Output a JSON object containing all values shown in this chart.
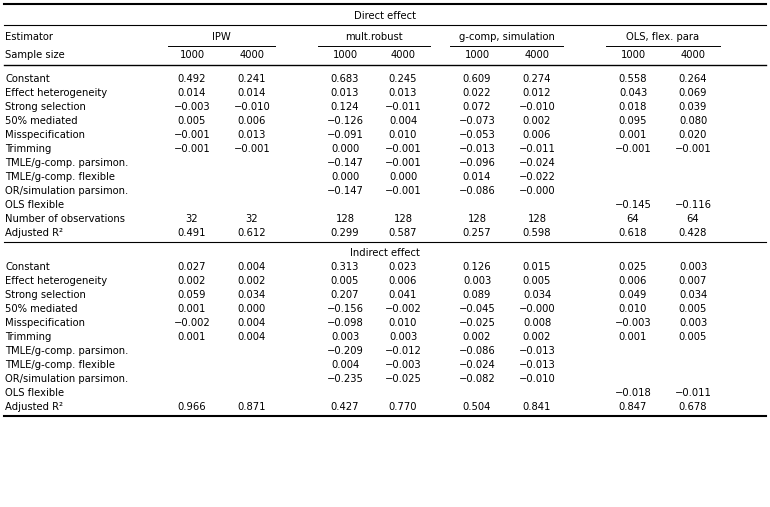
{
  "title_main": "Direct effect",
  "title_indirect": "Indirect effect",
  "col_groups": [
    {
      "label": "IPW"
    },
    {
      "label": "mult.robust"
    },
    {
      "label": "g-comp, simulation"
    },
    {
      "label": "OLS, flex. para"
    }
  ],
  "direct_rows": [
    [
      "Constant",
      "0.492",
      "0.241",
      "0.683",
      "0.245",
      "0.609",
      "0.274",
      "0.558",
      "0.264"
    ],
    [
      "Effect heterogeneity",
      "0.014",
      "0.014",
      "0.013",
      "0.013",
      "0.022",
      "0.012",
      "0.043",
      "0.069"
    ],
    [
      "Strong selection",
      "−0.003",
      "−0.010",
      "0.124",
      "−0.011",
      "0.072",
      "−0.010",
      "0.018",
      "0.039"
    ],
    [
      "50% mediated",
      "0.005",
      "0.006",
      "−0.126",
      "0.004",
      "−0.073",
      "0.002",
      "0.095",
      "0.080"
    ],
    [
      "Misspecification",
      "−0.001",
      "0.013",
      "−0.091",
      "0.010",
      "−0.053",
      "0.006",
      "0.001",
      "0.020"
    ],
    [
      "Trimming",
      "−0.001",
      "−0.001",
      "0.000",
      "−0.001",
      "−0.013",
      "−0.011",
      "−0.001",
      "−0.001"
    ],
    [
      "TMLE/g-comp. parsimon.",
      "",
      "",
      "−0.147",
      "−0.001",
      "−0.096",
      "−0.024",
      "",
      ""
    ],
    [
      "TMLE/g-comp. flexible",
      "",
      "",
      "0.000",
      "0.000",
      "0.014",
      "−0.022",
      "",
      ""
    ],
    [
      "OR/simulation parsimon.",
      "",
      "",
      "−0.147",
      "−0.001",
      "−0.086",
      "−0.000",
      "",
      ""
    ],
    [
      "OLS flexible",
      "",
      "",
      "",
      "",
      "",
      "",
      "−0.145",
      "−0.116"
    ],
    [
      "Number of observations",
      "32",
      "32",
      "128",
      "128",
      "128",
      "128",
      "64",
      "64"
    ],
    [
      "Adjusted R²",
      "0.491",
      "0.612",
      "0.299",
      "0.587",
      "0.257",
      "0.598",
      "0.618",
      "0.428"
    ]
  ],
  "indirect_rows": [
    [
      "Constant",
      "0.027",
      "0.004",
      "0.313",
      "0.023",
      "0.126",
      "0.015",
      "0.025",
      "0.003"
    ],
    [
      "Effect heterogeneity",
      "0.002",
      "0.002",
      "0.005",
      "0.006",
      "0.003",
      "0.005",
      "0.006",
      "0.007"
    ],
    [
      "Strong selection",
      "0.059",
      "0.034",
      "0.207",
      "0.041",
      "0.089",
      "0.034",
      "0.049",
      "0.034"
    ],
    [
      "50% mediated",
      "0.001",
      "0.000",
      "−0.156",
      "−0.002",
      "−0.045",
      "−0.000",
      "0.010",
      "0.005"
    ],
    [
      "Misspecification",
      "−0.002",
      "0.004",
      "−0.098",
      "0.010",
      "−0.025",
      "0.008",
      "−0.003",
      "0.003"
    ],
    [
      "Trimming",
      "0.001",
      "0.004",
      "0.003",
      "0.003",
      "0.002",
      "0.002",
      "0.001",
      "0.005"
    ],
    [
      "TMLE/g-comp. parsimon.",
      "",
      "",
      "−0.209",
      "−0.012",
      "−0.086",
      "−0.013",
      "",
      ""
    ],
    [
      "TMLE/g-comp. flexible",
      "",
      "",
      "0.004",
      "−0.003",
      "−0.024",
      "−0.013",
      "",
      ""
    ],
    [
      "OR/simulation parsimon.",
      "",
      "",
      "−0.235",
      "−0.025",
      "−0.082",
      "−0.010",
      "",
      ""
    ],
    [
      "OLS flexible",
      "",
      "",
      "",
      "",
      "",
      "",
      "−0.018",
      "−0.011"
    ],
    [
      "Adjusted R²",
      "0.966",
      "0.871",
      "0.427",
      "0.770",
      "0.504",
      "0.841",
      "0.847",
      "0.678"
    ]
  ],
  "font_size": 7.2,
  "bg_color": "#ffffff",
  "text_color": "#000000",
  "line_color": "#000000"
}
